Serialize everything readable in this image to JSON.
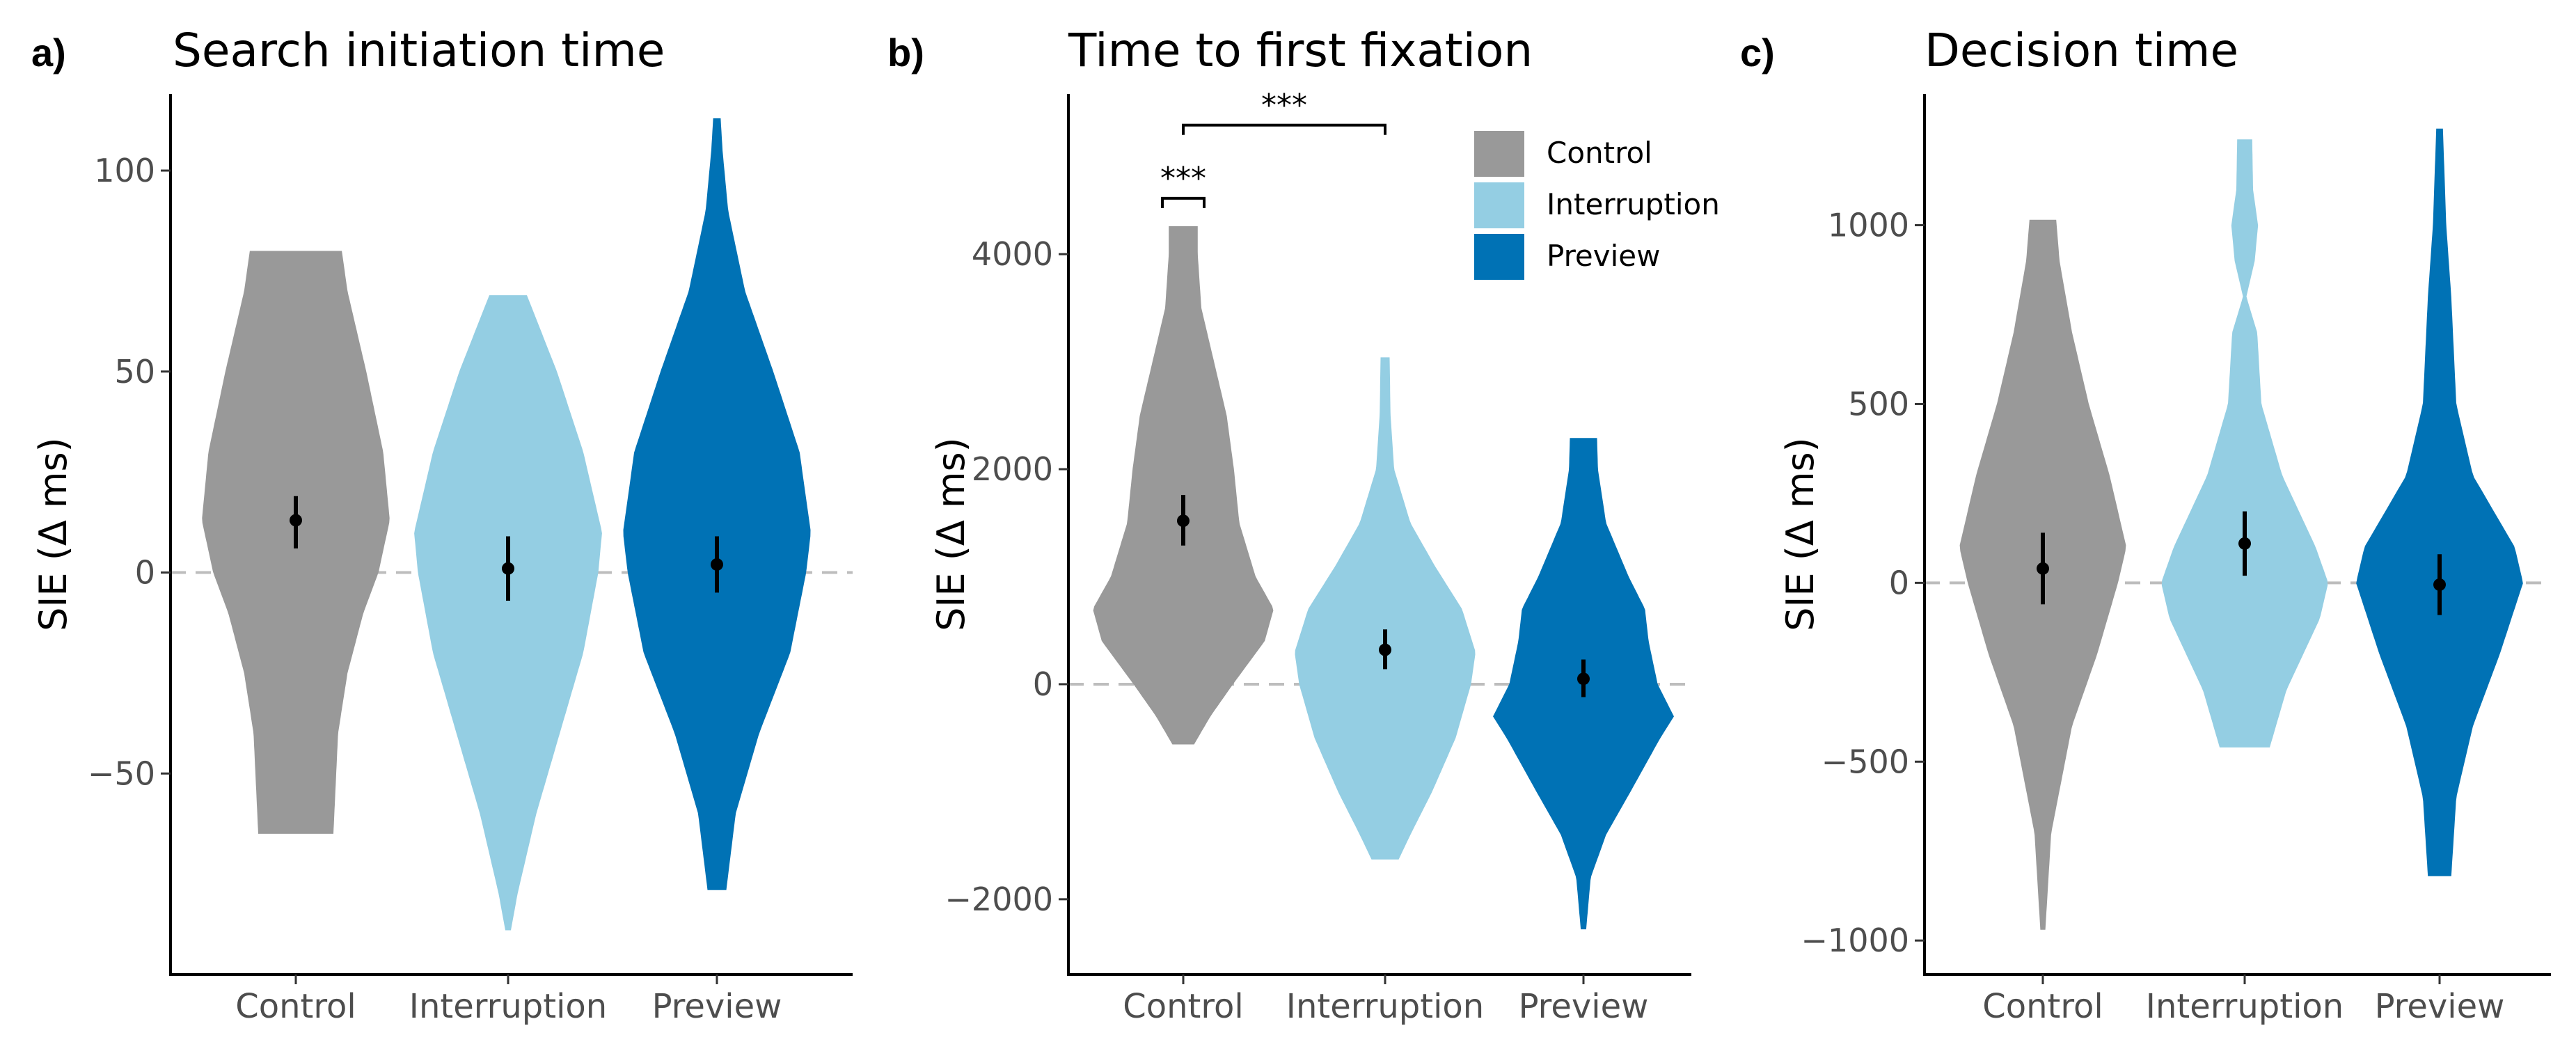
{
  "colors": {
    "Control": "#999999",
    "Interruption": "#94cee3",
    "Preview": "#0072b5"
  },
  "legend": {
    "entries": [
      "Control",
      "Interruption",
      "Preview"
    ]
  },
  "chart_data": [
    {
      "type": "violin",
      "letter": "a)",
      "title": "Search initiation time",
      "ylabel": "SIE (Δ ms)",
      "xlabel": "",
      "categories": [
        "Control",
        "Interruption",
        "Preview"
      ],
      "ylim": [
        -100,
        122
      ],
      "yticks": [
        -50,
        0,
        50,
        100
      ],
      "ytick_labels": [
        "−50",
        "0",
        "50",
        "100"
      ],
      "violins": [
        {
          "name": "Control",
          "mean": 13,
          "ci": [
            6,
            19
          ],
          "profile": [
            [
              -65,
              0.4
            ],
            [
              -55,
              0.42
            ],
            [
              -40,
              0.45
            ],
            [
              -25,
              0.55
            ],
            [
              -10,
              0.72
            ],
            [
              0,
              0.88
            ],
            [
              13,
              1.0
            ],
            [
              30,
              0.93
            ],
            [
              50,
              0.75
            ],
            [
              70,
              0.55
            ],
            [
              80,
              0.49
            ]
          ]
        },
        {
          "name": "Interruption",
          "mean": 1,
          "ci": [
            -7,
            9
          ],
          "profile": [
            [
              -89,
              0.03
            ],
            [
              -80,
              0.1
            ],
            [
              -60,
              0.3
            ],
            [
              -40,
              0.55
            ],
            [
              -20,
              0.8
            ],
            [
              0,
              0.96
            ],
            [
              10,
              1.0
            ],
            [
              30,
              0.8
            ],
            [
              50,
              0.52
            ],
            [
              69,
              0.2
            ]
          ]
        },
        {
          "name": "Preview",
          "mean": 2,
          "ci": [
            -5,
            9
          ],
          "profile": [
            [
              -79,
              0.1
            ],
            [
              -60,
              0.2
            ],
            [
              -40,
              0.45
            ],
            [
              -20,
              0.78
            ],
            [
              0,
              0.95
            ],
            [
              10,
              1.0
            ],
            [
              30,
              0.88
            ],
            [
              50,
              0.6
            ],
            [
              70,
              0.3
            ],
            [
              90,
              0.12
            ],
            [
              105,
              0.06
            ],
            [
              113,
              0.04
            ]
          ]
        }
      ]
    },
    {
      "type": "violin",
      "letter": "b)",
      "title": "Time to first fixation",
      "ylabel": "SIE (Δ ms)",
      "xlabel": "",
      "categories": [
        "Control",
        "Interruption",
        "Preview"
      ],
      "ylim": [
        -2700,
        5600
      ],
      "yticks": [
        -2000,
        0,
        2000,
        4000
      ],
      "ytick_labels": [
        "−2000",
        "0",
        "2000",
        "4000"
      ],
      "violins": [
        {
          "name": "Control",
          "mean": 1520,
          "ci": [
            1290,
            1760
          ],
          "profile": [
            [
              -560,
              0.12
            ],
            [
              -300,
              0.3
            ],
            [
              0,
              0.55
            ],
            [
              400,
              0.9
            ],
            [
              700,
              1.0
            ],
            [
              1000,
              0.8
            ],
            [
              1500,
              0.62
            ],
            [
              2000,
              0.56
            ],
            [
              2500,
              0.48
            ],
            [
              3000,
              0.34
            ],
            [
              3500,
              0.2
            ],
            [
              4000,
              0.16
            ],
            [
              4260,
              0.16
            ]
          ]
        },
        {
          "name": "Interruption",
          "mean": 320,
          "ci": [
            140,
            510
          ],
          "profile": [
            [
              -1630,
              0.15
            ],
            [
              -1400,
              0.28
            ],
            [
              -1000,
              0.52
            ],
            [
              -500,
              0.78
            ],
            [
              0,
              0.95
            ],
            [
              300,
              1.0
            ],
            [
              700,
              0.85
            ],
            [
              1100,
              0.55
            ],
            [
              1500,
              0.28
            ],
            [
              2000,
              0.1
            ],
            [
              2500,
              0.06
            ],
            [
              3040,
              0.05
            ]
          ]
        },
        {
          "name": "Preview",
          "mean": 50,
          "ci": [
            -120,
            230
          ],
          "profile": [
            [
              -2280,
              0.03
            ],
            [
              -1800,
              0.08
            ],
            [
              -1400,
              0.25
            ],
            [
              -1000,
              0.52
            ],
            [
              -500,
              0.85
            ],
            [
              -300,
              1.0
            ],
            [
              0,
              0.82
            ],
            [
              400,
              0.72
            ],
            [
              700,
              0.68
            ],
            [
              1000,
              0.5
            ],
            [
              1500,
              0.25
            ],
            [
              2000,
              0.16
            ],
            [
              2290,
              0.15
            ]
          ]
        }
      ],
      "annotations": [
        {
          "text": "***",
          "between": [
            "Control",
            "Control"
          ],
          "y": 4520
        },
        {
          "text": "***",
          "between": [
            "Control",
            "Interruption"
          ],
          "y": 5200
        }
      ]
    },
    {
      "type": "violin",
      "letter": "c)",
      "title": "Decision time",
      "ylabel": "SIE (Δ ms)",
      "xlabel": "",
      "categories": [
        "Control",
        "Interruption",
        "Preview"
      ],
      "ylim": [
        -1095,
        1400
      ],
      "yticks": [
        -1000,
        -500,
        0,
        500,
        1000
      ],
      "ytick_labels": [
        "−1000",
        "−500",
        "0",
        "500",
        "1000"
      ],
      "violins": [
        {
          "name": "Control",
          "mean": 40,
          "ci": [
            -60,
            140
          ],
          "profile": [
            [
              -970,
              0.03
            ],
            [
              -700,
              0.1
            ],
            [
              -400,
              0.35
            ],
            [
              -200,
              0.65
            ],
            [
              0,
              0.9
            ],
            [
              100,
              1.0
            ],
            [
              300,
              0.8
            ],
            [
              500,
              0.55
            ],
            [
              700,
              0.35
            ],
            [
              900,
              0.2
            ],
            [
              1015,
              0.16
            ]
          ]
        },
        {
          "name": "Interruption",
          "mean": 110,
          "ci": [
            20,
            200
          ],
          "profile": [
            [
              -460,
              0.3
            ],
            [
              -300,
              0.5
            ],
            [
              -100,
              0.9
            ],
            [
              0,
              1.0
            ],
            [
              100,
              0.85
            ],
            [
              300,
              0.45
            ],
            [
              500,
              0.2
            ],
            [
              700,
              0.15
            ],
            [
              800,
              0.02
            ],
            [
              900,
              0.12
            ],
            [
              1000,
              0.16
            ],
            [
              1100,
              0.1
            ],
            [
              1240,
              0.09
            ]
          ]
        },
        {
          "name": "Preview",
          "mean": -5,
          "ci": [
            -90,
            80
          ],
          "profile": [
            [
              -820,
              0.14
            ],
            [
              -600,
              0.2
            ],
            [
              -400,
              0.4
            ],
            [
              -200,
              0.72
            ],
            [
              0,
              1.0
            ],
            [
              100,
              0.9
            ],
            [
              300,
              0.4
            ],
            [
              500,
              0.2
            ],
            [
              800,
              0.14
            ],
            [
              1000,
              0.08
            ],
            [
              1270,
              0.04
            ]
          ]
        }
      ]
    }
  ]
}
